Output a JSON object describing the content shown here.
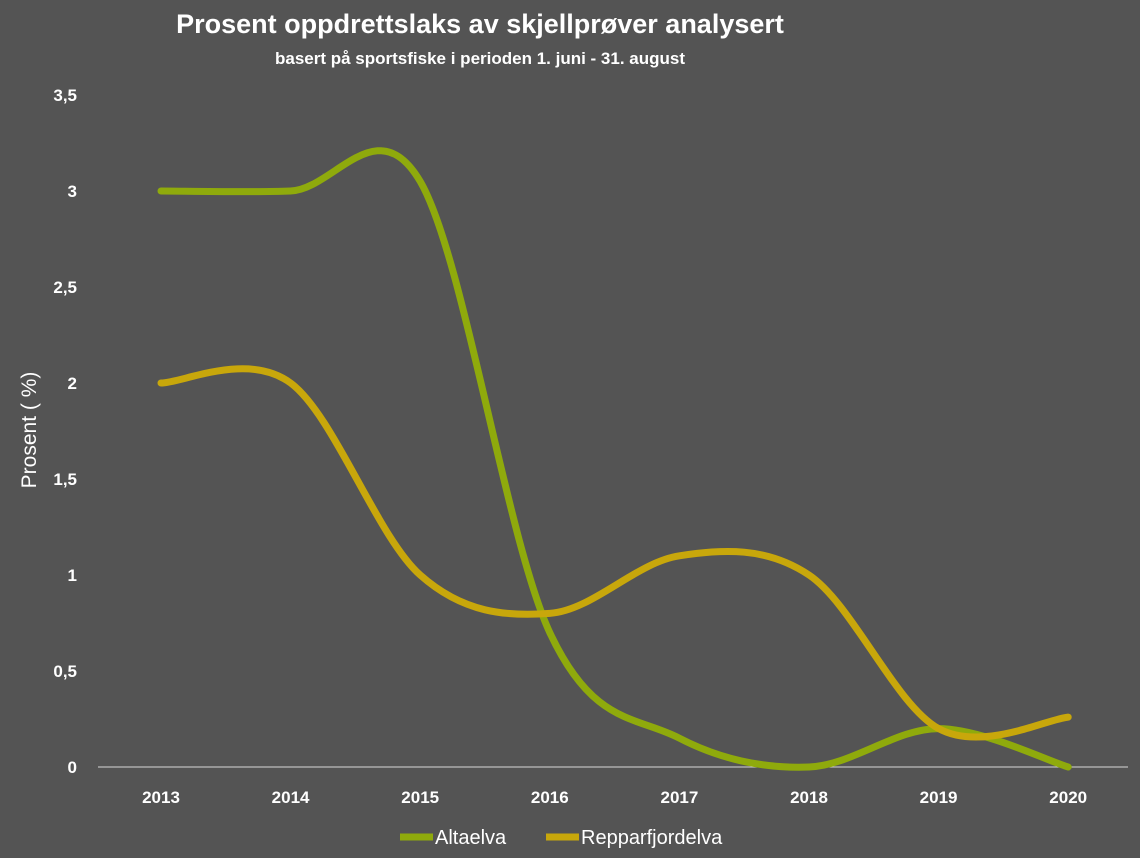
{
  "chart_data": {
    "type": "line",
    "title": "Prosent oppdrettslaks av skjellprøver analysert",
    "subtitle": "basert på sportsfiske i perioden 1. juni - 31. august",
    "xlabel": "",
    "ylabel": "Prosent ( %)",
    "categories": [
      "2013",
      "2014",
      "2015",
      "2016",
      "2017",
      "2018",
      "2019",
      "2020"
    ],
    "ylim": [
      0,
      3.5
    ],
    "yticks": [
      0,
      0.5,
      1,
      1.5,
      2,
      2.5,
      3,
      3.5
    ],
    "ytick_labels": [
      "0",
      "0,5",
      "1",
      "1,5",
      "2",
      "2,5",
      "3",
      "3,5"
    ],
    "grid": false,
    "smooth": true,
    "legend_position": "bottom",
    "series": [
      {
        "name": "Altaelva",
        "color": "#8faa0c",
        "values": [
          3,
          3,
          3.05,
          0.7,
          0.15,
          0,
          0.2,
          0
        ]
      },
      {
        "name": "Repparfjordelva",
        "color": "#c8a70b",
        "values": [
          2,
          2,
          1,
          0.8,
          1.1,
          1,
          0.2,
          0.26
        ]
      }
    ]
  }
}
